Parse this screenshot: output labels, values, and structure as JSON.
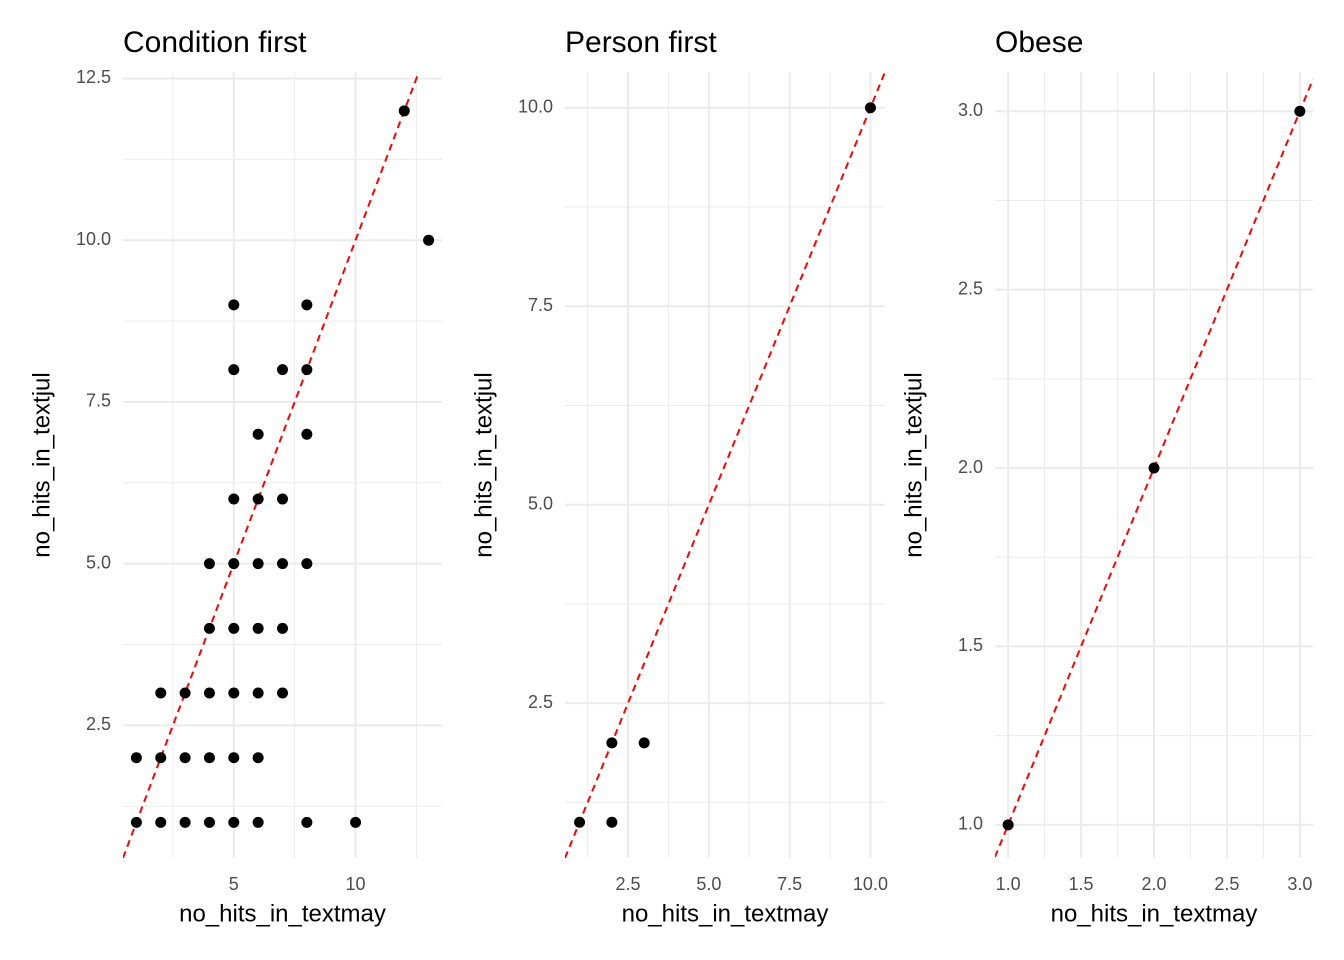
{
  "chart_data": [
    {
      "type": "scatter",
      "title": "Condition first",
      "x_label": "no_hits_in_textmay",
      "y_label": "no_hits_in_textjul",
      "x": [
        12,
        13,
        5,
        8,
        5,
        7,
        8,
        6,
        8,
        5,
        6,
        7,
        4,
        5,
        6,
        7,
        8,
        4,
        5,
        6,
        7,
        2,
        3,
        4,
        5,
        6,
        7,
        1,
        2,
        3,
        4,
        5,
        6,
        1,
        2,
        3,
        4,
        5,
        6,
        8,
        10
      ],
      "values": [
        12,
        10,
        9,
        9,
        8,
        8,
        8,
        7,
        7,
        6,
        6,
        6,
        5,
        5,
        5,
        5,
        5,
        4,
        4,
        4,
        4,
        3,
        3,
        3,
        3,
        3,
        3,
        2,
        2,
        2,
        2,
        2,
        2,
        1,
        1,
        1,
        1,
        1,
        1,
        1,
        1
      ],
      "color": "#000000",
      "xlim": [
        0.45,
        13.55
      ],
      "xticks": [
        5,
        10
      ],
      "ylim": [
        0.45,
        12.6
      ],
      "yticks": [
        2.5,
        {
          "value": 5,
          "label": "5.0"
        },
        7.5,
        {
          "value": 10,
          "label": "10.0"
        },
        12.5
      ],
      "grid": true,
      "reference_line": {
        "slope": 1,
        "intercept": 0,
        "color": "#ff0000"
      }
    },
    {
      "type": "scatter",
      "title": "Person first",
      "x_label": "no_hits_in_textmay",
      "y_label": "no_hits_in_textjul",
      "x": [
        1,
        2,
        3,
        2,
        10
      ],
      "values": [
        1,
        2,
        2,
        1,
        10
      ],
      "color": "#000000",
      "xlim": [
        0.55,
        10.45
      ],
      "xticks": [
        2.5,
        {
          "value": 5,
          "label": "5.0"
        },
        7.5,
        {
          "value": 10,
          "label": "10.0"
        }
      ],
      "ylim": [
        0.55,
        10.45
      ],
      "yticks": [
        2.5,
        {
          "value": 5,
          "label": "5.0"
        },
        7.5,
        {
          "value": 10,
          "label": "10.0"
        }
      ],
      "grid": true,
      "reference_line": {
        "slope": 1,
        "intercept": 0,
        "color": "#ff0000"
      }
    },
    {
      "type": "scatter",
      "title": "Obese",
      "x_label": "no_hits_in_textmay",
      "y_label": "no_hits_in_textjul",
      "x": [
        1,
        2,
        3
      ],
      "values": [
        1,
        2,
        3
      ],
      "color": "#000000",
      "xlim": [
        0.91,
        3.09
      ],
      "xticks": [
        {
          "value": 1,
          "label": "1.0"
        },
        1.5,
        {
          "value": 2,
          "label": "2.0"
        },
        2.5,
        {
          "value": 3,
          "label": "3.0"
        }
      ],
      "ylim": [
        0.907,
        3.11
      ],
      "yticks": [
        {
          "value": 1,
          "label": "1.0"
        },
        1.5,
        {
          "value": 2,
          "label": "2.0"
        },
        2.5,
        {
          "value": 3,
          "label": "3.0"
        }
      ],
      "grid": true,
      "reference_line": {
        "slope": 1,
        "intercept": 0,
        "color": "#ff0000"
      }
    }
  ]
}
